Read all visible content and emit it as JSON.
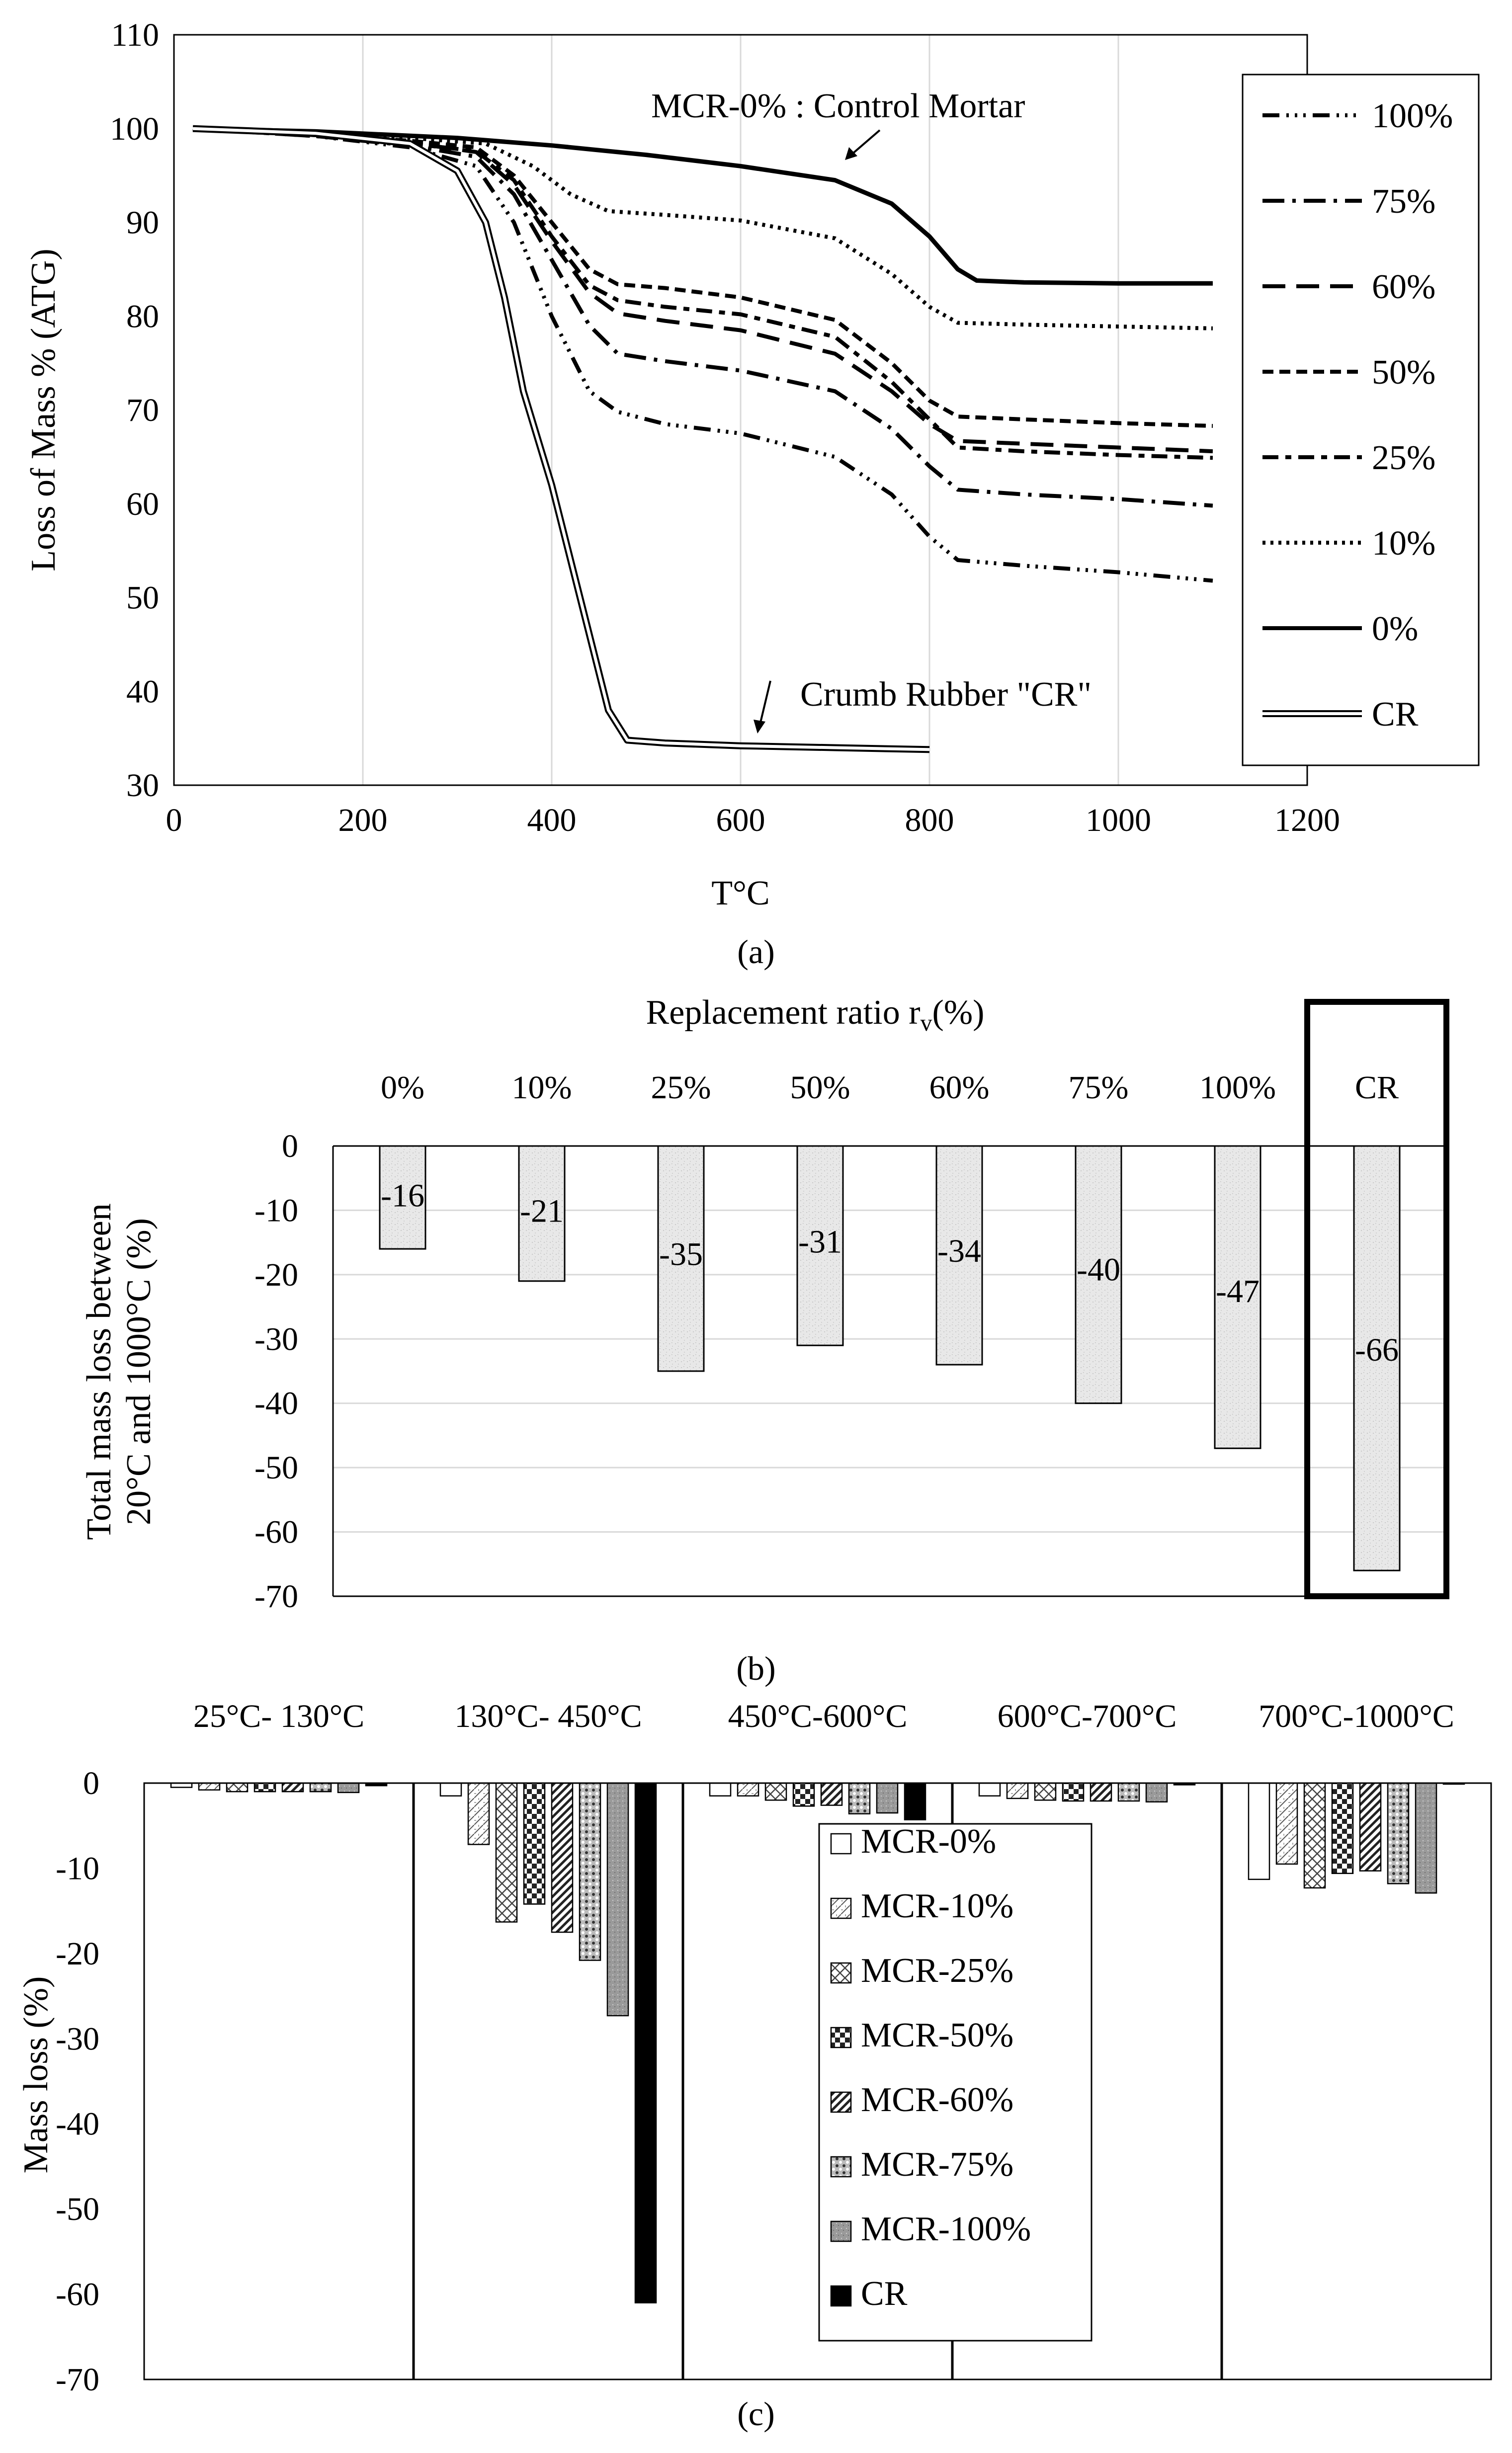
{
  "figure": {
    "panel_a_label": "(a)",
    "panel_b_label": "(b)",
    "panel_c_label": "(c)"
  },
  "colors": {
    "axis": "#000000",
    "grid": "#d9d9d9",
    "bar_b_fill": "#e6e6e6",
    "cr_bar": "#000000"
  },
  "chart_data": [
    {
      "type": "line",
      "title": "",
      "xlabel": "T°C",
      "ylabel": "Loss of Mass % (ATG)",
      "xlim": [
        0,
        1200
      ],
      "ylim": [
        30,
        110
      ],
      "xticks": [
        0,
        200,
        400,
        600,
        800,
        1000,
        1200
      ],
      "yticks": [
        30,
        40,
        50,
        60,
        70,
        80,
        90,
        100,
        110
      ],
      "grid": "vertical",
      "legend_position": "right",
      "annotations": [
        "MCR-0% : Control Mortar",
        "Crumb Rubber \"CR\""
      ],
      "series": [
        {
          "name": "100%",
          "style": "dashdotdot",
          "points": [
            [
              20,
              100
            ],
            [
              150,
              99.2
            ],
            [
              250,
              98
            ],
            [
              320,
              96
            ],
            [
              360,
              90
            ],
            [
              400,
              80
            ],
            [
              440,
              72
            ],
            [
              470,
              69.8
            ],
            [
              520,
              68.5
            ],
            [
              600,
              67.5
            ],
            [
              700,
              65
            ],
            [
              760,
              61
            ],
            [
              800,
              56.5
            ],
            [
              830,
              54
            ],
            [
              900,
              53.4
            ],
            [
              1000,
              52.7
            ],
            [
              1100,
              51.8
            ]
          ]
        },
        {
          "name": "75%",
          "style": "dashdot",
          "points": [
            [
              20,
              100
            ],
            [
              150,
              99.2
            ],
            [
              250,
              98.2
            ],
            [
              320,
              97
            ],
            [
              360,
              93
            ],
            [
              400,
              86
            ],
            [
              440,
              79
            ],
            [
              470,
              76
            ],
            [
              520,
              75.2
            ],
            [
              600,
              74.2
            ],
            [
              700,
              72
            ],
            [
              760,
              68
            ],
            [
              800,
              64
            ],
            [
              830,
              61.5
            ],
            [
              900,
              61
            ],
            [
              1000,
              60.5
            ],
            [
              1100,
              59.8
            ]
          ]
        },
        {
          "name": "60%",
          "style": "longdash",
          "points": [
            [
              20,
              100
            ],
            [
              150,
              99.3
            ],
            [
              250,
              98.5
            ],
            [
              320,
              97.5
            ],
            [
              360,
              94
            ],
            [
              400,
              88
            ],
            [
              440,
              82.5
            ],
            [
              470,
              80.3
            ],
            [
              520,
              79.5
            ],
            [
              600,
              78.5
            ],
            [
              700,
              76
            ],
            [
              760,
              72
            ],
            [
              800,
              68.5
            ],
            [
              830,
              66.7
            ],
            [
              900,
              66.4
            ],
            [
              1000,
              66
            ],
            [
              1100,
              65.6
            ]
          ]
        },
        {
          "name": "50%",
          "style": "dash",
          "points": [
            [
              20,
              100
            ],
            [
              150,
              99.4
            ],
            [
              250,
              98.7
            ],
            [
              320,
              98
            ],
            [
              360,
              95
            ],
            [
              400,
              90
            ],
            [
              440,
              85
            ],
            [
              470,
              83.4
            ],
            [
              520,
              83
            ],
            [
              600,
              82
            ],
            [
              700,
              79.6
            ],
            [
              760,
              75
            ],
            [
              800,
              71
            ],
            [
              830,
              69.3
            ],
            [
              900,
              69
            ],
            [
              1000,
              68.6
            ],
            [
              1100,
              68.3
            ]
          ]
        },
        {
          "name": "25%",
          "style": "shortlongdash",
          "points": [
            [
              20,
              100
            ],
            [
              150,
              99.3
            ],
            [
              250,
              98.4
            ],
            [
              320,
              97.6
            ],
            [
              360,
              94.5
            ],
            [
              400,
              88.5
            ],
            [
              440,
              83.3
            ],
            [
              470,
              81.7
            ],
            [
              520,
              81
            ],
            [
              600,
              80.2
            ],
            [
              700,
              77.8
            ],
            [
              760,
              73
            ],
            [
              800,
              69
            ],
            [
              830,
              66
            ],
            [
              900,
              65.6
            ],
            [
              1000,
              65.2
            ],
            [
              1100,
              64.9
            ]
          ]
        },
        {
          "name": "10%",
          "style": "dot",
          "points": [
            [
              20,
              100
            ],
            [
              150,
              99.5
            ],
            [
              250,
              99
            ],
            [
              330,
              98.4
            ],
            [
              380,
              96
            ],
            [
              420,
              93
            ],
            [
              460,
              91.2
            ],
            [
              520,
              90.8
            ],
            [
              600,
              90.2
            ],
            [
              700,
              88.3
            ],
            [
              760,
              84.5
            ],
            [
              800,
              81
            ],
            [
              830,
              79.3
            ],
            [
              900,
              79.1
            ],
            [
              1000,
              78.9
            ],
            [
              1100,
              78.7
            ]
          ]
        },
        {
          "name": "0%",
          "style": "solid",
          "points": [
            [
              20,
              100
            ],
            [
              150,
              99.7
            ],
            [
              300,
              99
            ],
            [
              400,
              98.2
            ],
            [
              500,
              97.2
            ],
            [
              600,
              96
            ],
            [
              700,
              94.5
            ],
            [
              760,
              92
            ],
            [
              800,
              88.5
            ],
            [
              830,
              85
            ],
            [
              850,
              83.8
            ],
            [
              900,
              83.6
            ],
            [
              1000,
              83.5
            ],
            [
              1100,
              83.5
            ]
          ]
        },
        {
          "name": "CR",
          "style": "double",
          "points": [
            [
              20,
              100
            ],
            [
              150,
              99.5
            ],
            [
              250,
              98.4
            ],
            [
              300,
              95.5
            ],
            [
              330,
              90
            ],
            [
              350,
              82
            ],
            [
              370,
              72
            ],
            [
              400,
              62
            ],
            [
              430,
              50
            ],
            [
              460,
              38
            ],
            [
              480,
              34.8
            ],
            [
              520,
              34.5
            ],
            [
              600,
              34.2
            ],
            [
              700,
              34
            ],
            [
              800,
              33.8
            ]
          ]
        }
      ]
    },
    {
      "type": "bar",
      "title": "Replacement ratio rv(%)",
      "title_main": "Replacement ratio r",
      "title_sub": "v",
      "title_tail": "(%)",
      "ylabel": [
        "Total mass loss between",
        "20°C and 1000°C (%)"
      ],
      "ylim": [
        -70,
        0
      ],
      "yticks": [
        0,
        -10,
        -20,
        -30,
        -40,
        -50,
        -60,
        -70
      ],
      "categories": [
        "0%",
        "10%",
        "25%",
        "50%",
        "60%",
        "75%",
        "100%",
        "CR"
      ],
      "values": [
        -16,
        -21,
        -35,
        -31,
        -34,
        -40,
        -47,
        -66
      ],
      "value_labels": [
        "-16",
        "-21",
        "-35",
        "-31",
        "-34",
        "-40",
        "-47",
        "-66"
      ],
      "highlight": "CR"
    },
    {
      "type": "bar",
      "title": "",
      "ylabel": "Mass loss (%)",
      "ylim": [
        -70,
        0
      ],
      "yticks": [
        0,
        -10,
        -20,
        -30,
        -40,
        -50,
        -60,
        -70
      ],
      "categories": [
        "25°C- 130°C",
        "130°C- 450°C",
        "450°C-600°C",
        "600°C-700°C",
        "700°C-1000°C"
      ],
      "legend_position": "center",
      "series": [
        {
          "name": "MCR-0%",
          "pattern": "white",
          "values": [
            -0.5,
            -1.5,
            -1.5,
            -1.5,
            -11.3
          ]
        },
        {
          "name": "MCR-10%",
          "pattern": "lightcross",
          "values": [
            -0.8,
            -7.2,
            -1.5,
            -1.8,
            -9.5
          ]
        },
        {
          "name": "MCR-25%",
          "pattern": "diagcross",
          "values": [
            -1.0,
            -16.3,
            -2.0,
            -2.0,
            -12.3
          ]
        },
        {
          "name": "MCR-50%",
          "pattern": "checker",
          "values": [
            -1.0,
            -14.2,
            -2.7,
            -2.1,
            -10.6
          ]
        },
        {
          "name": "MCR-60%",
          "pattern": "diagstripe",
          "values": [
            -1.0,
            -17.5,
            -2.6,
            -2.1,
            -10.3
          ]
        },
        {
          "name": "MCR-75%",
          "pattern": "dots",
          "values": [
            -1.0,
            -20.8,
            -3.6,
            -2.1,
            -11.8
          ]
        },
        {
          "name": "MCR-100%",
          "pattern": "grey",
          "values": [
            -1.1,
            -27.3,
            -3.5,
            -2.2,
            -12.9
          ]
        },
        {
          "name": "CR",
          "pattern": "black",
          "values": [
            -0.3,
            -61.0,
            -4.3,
            -0.2,
            -0.1
          ]
        }
      ]
    }
  ]
}
